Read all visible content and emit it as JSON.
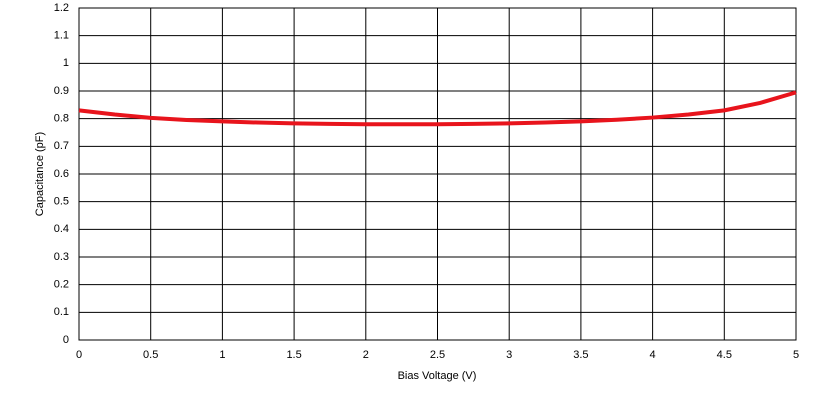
{
  "chart_data": {
    "type": "line",
    "x_label": "Bias Voltage (V)",
    "y_label": "Capacitance (pF)",
    "x": [
      0,
      0.25,
      0.5,
      0.75,
      1,
      1.25,
      1.5,
      1.75,
      2,
      2.25,
      2.5,
      2.75,
      3,
      3.25,
      3.5,
      3.75,
      4,
      4.25,
      4.5,
      4.75,
      5
    ],
    "series": [
      {
        "color": "#e8141c",
        "values": [
          0.83,
          0.815,
          0.803,
          0.795,
          0.79,
          0.786,
          0.783,
          0.781,
          0.78,
          0.78,
          0.78,
          0.781,
          0.783,
          0.786,
          0.79,
          0.796,
          0.804,
          0.815,
          0.83,
          0.857,
          0.895
        ]
      }
    ],
    "xlim": [
      0,
      5
    ],
    "xticks": [
      0,
      0.5,
      1,
      1.5,
      2,
      2.5,
      3,
      3.5,
      4,
      4.5,
      5
    ],
    "ylim": [
      0,
      1.2
    ],
    "yticks": [
      0,
      0.1,
      0.2,
      0.3,
      0.4,
      0.5,
      0.6,
      0.7,
      0.8,
      0.9,
      1,
      1.1,
      1.2
    ],
    "grid": true
  }
}
